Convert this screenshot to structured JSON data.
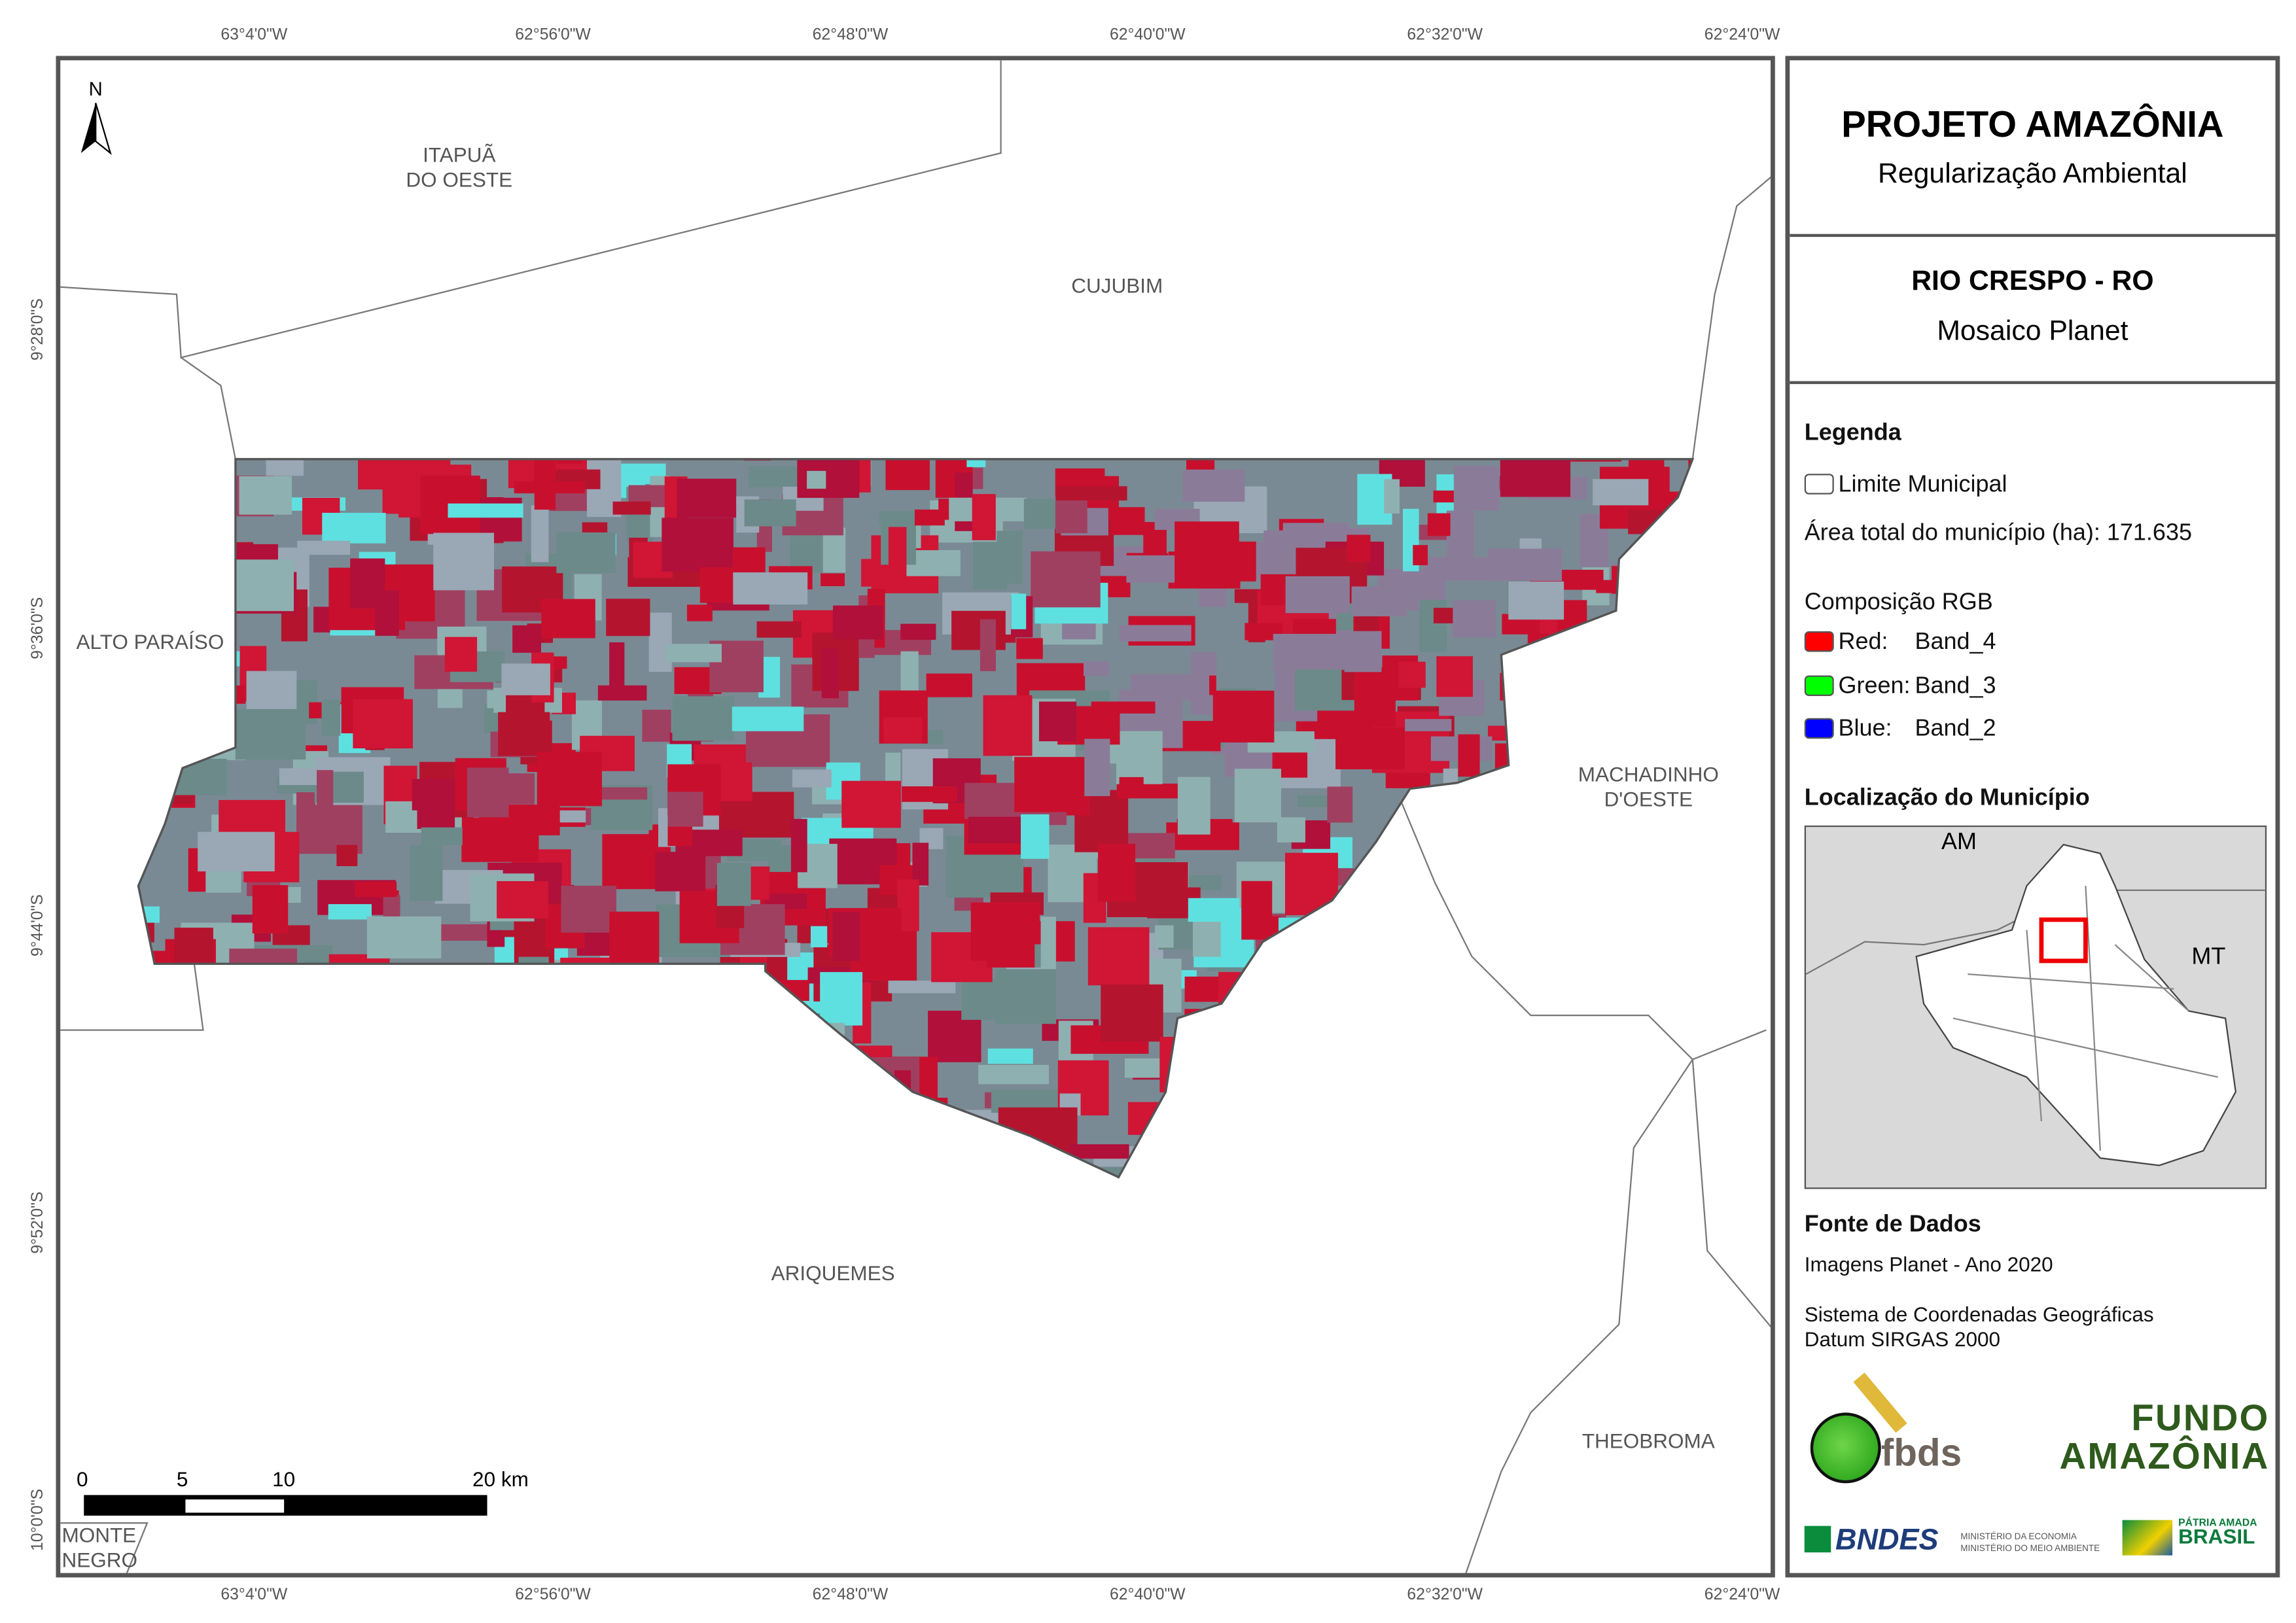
{
  "title": {
    "main": "PROJETO AMAZÔNIA",
    "sub": "Regularização Ambiental"
  },
  "municipality": {
    "name": "RIO CRESPO - RO",
    "subtitle": "Mosaico Planet"
  },
  "legend": {
    "heading": "Legenda",
    "boundary": "Limite Municipal",
    "area": "Área total do município (ha): 171.635",
    "rgb_heading": "Composição RGB",
    "bands": [
      {
        "label": "Red:",
        "band": "Band_4",
        "color": "#ff0000"
      },
      {
        "label": "Green:",
        "band": "Band_3",
        "color": "#00ff00"
      },
      {
        "label": "Blue:",
        "band": "Band_2",
        "color": "#0000ff"
      }
    ]
  },
  "location": {
    "heading": "Localização do Município",
    "labels": {
      "am": "AM",
      "mt": "MT"
    },
    "highlight_color": "#e00000"
  },
  "sources": {
    "heading": "Fonte de Dados",
    "lines": [
      "Imagens Planet - Ano 2020",
      "Sistema de Coordenadas Geográficas",
      "Datum SIRGAS 2000"
    ]
  },
  "logos": {
    "fbds": "fbds",
    "fundo": "FUNDO AMAZÔNIA",
    "bndes": "BNDES",
    "min_economia": "MINISTÉRIO DA ECONOMIA",
    "min_meio": "MINISTÉRIO DO MEIO AMBIENTE",
    "patria": "PÁTRIA AMADA BRASIL GOVERNO FEDERAL"
  },
  "map": {
    "north": "N",
    "x_ticks": [
      "63°4'0\"W",
      "62°56'0\"W",
      "62°48'0\"W",
      "62°40'0\"W",
      "62°32'0\"W",
      "62°24'0\"W"
    ],
    "y_ticks": [
      "9°28'0\"S",
      "9°36'0\"S",
      "9°44'0\"S",
      "9°52'0\"S",
      "10°0'0\"S"
    ],
    "places": {
      "itapua": "ITAPUÃ\nDO OESTE",
      "cujubim": "CUJUBIM",
      "alto": "ALTO PARAÍSO",
      "machadinho": "MACHADINHO\nD'OESTE",
      "ariquemes": "ARIQUEMES",
      "theobroma": "THEOBROMA",
      "monte": "MONTE\nNEGRO"
    },
    "scale": [
      "0",
      "5",
      "10",
      "20 km"
    ]
  }
}
